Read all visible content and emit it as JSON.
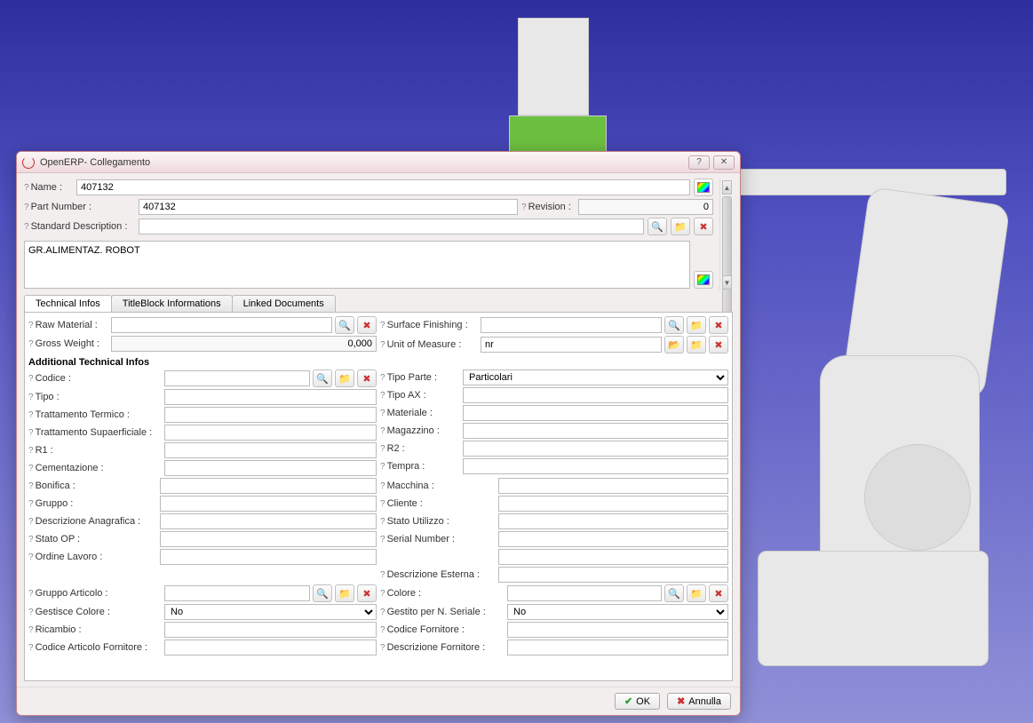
{
  "window": {
    "title": "OpenERP- Collegamento"
  },
  "header": {
    "name_label": "Name :",
    "name_value": "407132",
    "part_number_label": "Part Number :",
    "part_number_value": "407132",
    "revision_label": "Revision :",
    "revision_value": "0",
    "std_desc_label": "Standard Description :",
    "std_desc_value": "",
    "description_value": "GR.ALIMENTAZ. ROBOT"
  },
  "tabs": {
    "tech": "Technical Infos",
    "title_block": "TitleBlock Informations",
    "linked_docs": "Linked Documents"
  },
  "tech": {
    "raw_material_label": "Raw Material :",
    "raw_material_value": "",
    "surface_finishing_label": "Surface Finishing :",
    "surface_finishing_value": "",
    "gross_weight_label": "Gross Weight :",
    "gross_weight_value": "0,000",
    "uom_label": "Unit of Measure :",
    "uom_value": "nr",
    "additional_title": "Additional Technical Infos",
    "left1": [
      {
        "label": "Codice :",
        "value": "",
        "icons": true
      },
      {
        "label": "Tipo :",
        "value": ""
      },
      {
        "label": "Trattamento Termico :",
        "value": ""
      },
      {
        "label": "Trattamento Supaerficiale :",
        "value": ""
      },
      {
        "label": "R1 :",
        "value": ""
      },
      {
        "label": "Cementazione :",
        "value": ""
      }
    ],
    "right1": [
      {
        "label": "Tipo Parte :",
        "value": "Particolari",
        "select": true
      },
      {
        "label": "Tipo AX :",
        "value": ""
      },
      {
        "label": "Materiale :",
        "value": ""
      },
      {
        "label": "Magazzino :",
        "value": ""
      },
      {
        "label": "R2 :",
        "value": ""
      },
      {
        "label": "Tempra :",
        "value": ""
      }
    ],
    "left2": [
      {
        "label": "Bonifica :",
        "value": ""
      },
      {
        "label": "Gruppo :",
        "value": ""
      },
      {
        "label": "Descrizione Anagrafica :",
        "value": ""
      },
      {
        "label": "Stato OP :",
        "value": ""
      },
      {
        "label": "Ordine Lavoro :",
        "value": ""
      }
    ],
    "right2": [
      {
        "label": "Macchina :",
        "value": ""
      },
      {
        "label": "Cliente :",
        "value": ""
      },
      {
        "label": "Stato Utilizzo :",
        "value": ""
      },
      {
        "label": "Serial Number :",
        "value": ""
      },
      {
        "label": "",
        "value": ""
      },
      {
        "label": "Descrizione Esterna :",
        "value": ""
      }
    ],
    "left3": [
      {
        "label": "Gruppo Articolo :",
        "value": "",
        "icons": true
      },
      {
        "label": "Gestisce Colore :",
        "value": "No",
        "select": true
      },
      {
        "label": "Ricambio :",
        "value": ""
      },
      {
        "label": "Codice Articolo Fornitore :",
        "value": ""
      }
    ],
    "right3": [
      {
        "label": "Colore :",
        "value": "",
        "icons": true
      },
      {
        "label": "Gestito per N. Seriale :",
        "value": "No",
        "select": true
      },
      {
        "label": "Codice Fornitore :",
        "value": ""
      },
      {
        "label": "Descrizione Fornitore :",
        "value": ""
      }
    ]
  },
  "footer": {
    "ok": "OK",
    "cancel": "Annulla"
  },
  "colors": {
    "dialog_border": "#c88088",
    "bg_gradient_top": "#2e2e9e",
    "bg_gradient_bottom": "#9090d8"
  }
}
